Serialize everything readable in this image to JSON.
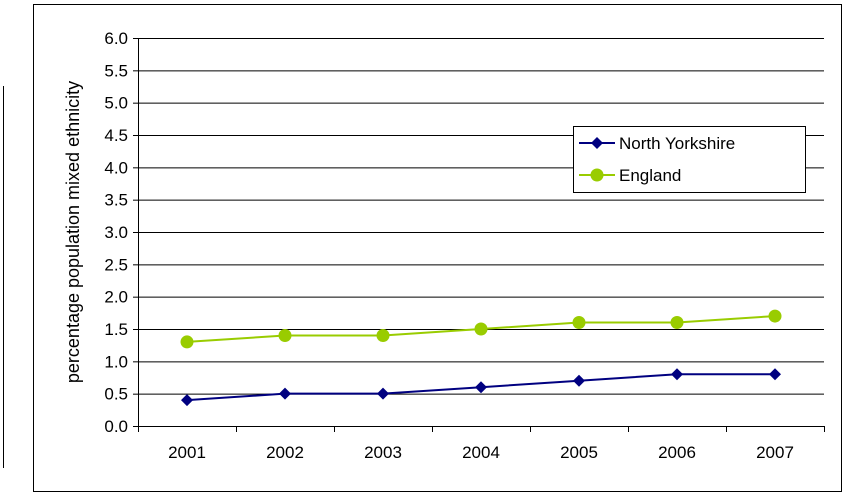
{
  "chart_data": {
    "type": "line",
    "title": "",
    "xlabel": "",
    "ylabel": "percentage population mixed ethnicity",
    "categories": [
      "2001",
      "2002",
      "2003",
      "2004",
      "2005",
      "2006",
      "2007"
    ],
    "ylim": [
      0,
      6
    ],
    "ytick_step": 0.5,
    "ytick_labels": [
      "0.0",
      "0.5",
      "1.0",
      "1.5",
      "2.0",
      "2.5",
      "3.0",
      "3.5",
      "4.0",
      "4.5",
      "5.0",
      "5.5",
      "6.0"
    ],
    "grid": true,
    "legend_position": "right",
    "series": [
      {
        "name": "North Yorkshire",
        "values": [
          0.4,
          0.5,
          0.5,
          0.6,
          0.7,
          0.8,
          0.8
        ],
        "color": "#000080",
        "marker": "diamond"
      },
      {
        "name": "England",
        "values": [
          1.3,
          1.4,
          1.4,
          1.5,
          1.6,
          1.6,
          1.7
        ],
        "color": "#99CC00",
        "marker": "circle"
      }
    ]
  }
}
